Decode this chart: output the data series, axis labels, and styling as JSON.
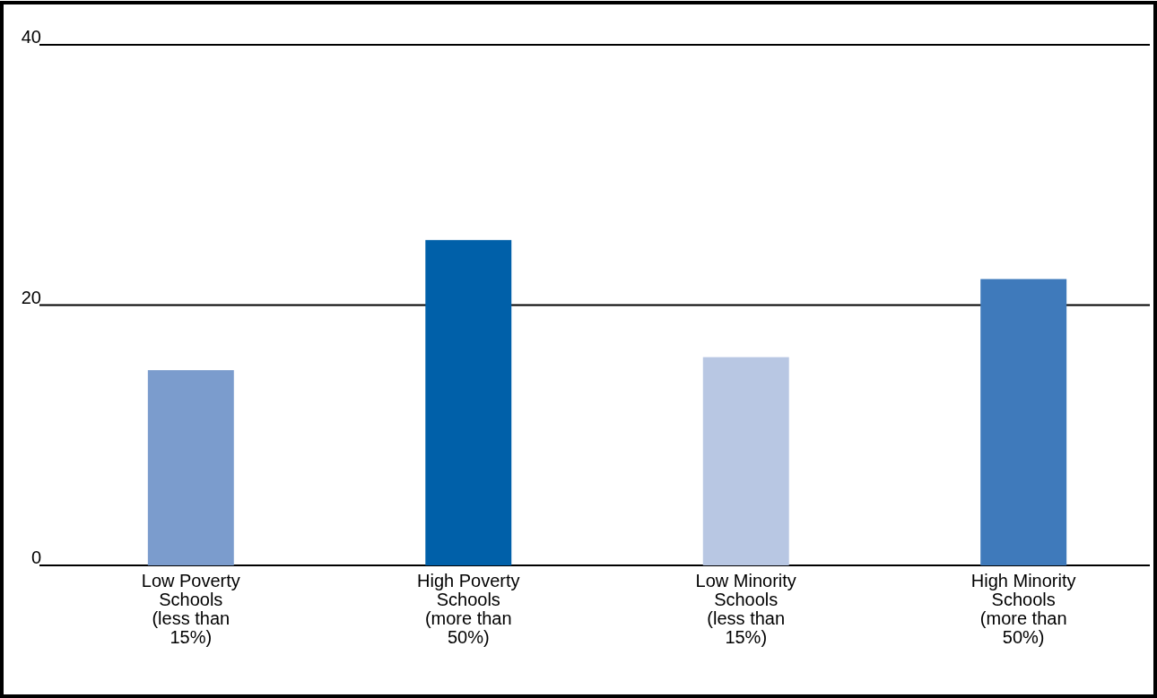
{
  "chart_data": {
    "type": "bar",
    "categories": [
      "Low Poverty\nSchools\n(less than\n15%)",
      "High Poverty\nSchools\n(more than\n50%)",
      "Low Minority\nSchools\n(less than\n15%)",
      "High Minority\nSchools\n(more than\n50%)"
    ],
    "values": [
      15,
      25,
      16,
      22
    ],
    "colors": [
      "#7b9ccd",
      "#0060a9",
      "#b8c7e3",
      "#3f7abb"
    ],
    "ylim": [
      0,
      40
    ],
    "yticks": [
      0,
      20,
      40
    ],
    "grid": "y"
  }
}
